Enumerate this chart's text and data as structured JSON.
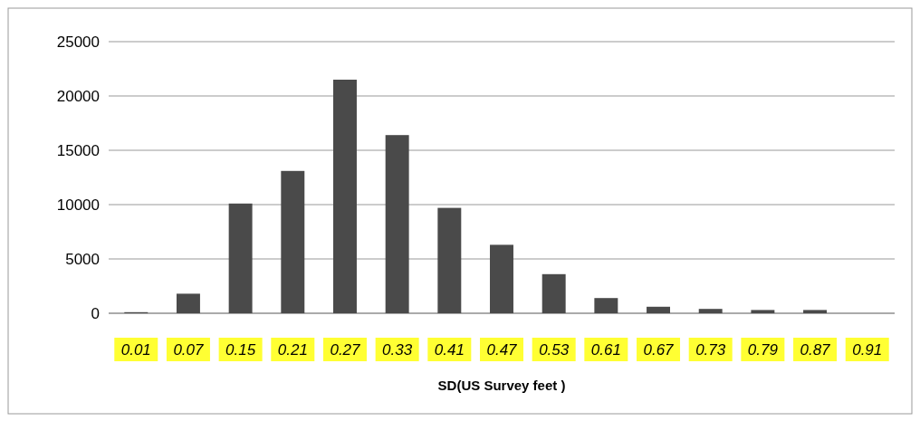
{
  "chart_data": {
    "type": "bar",
    "xlabel": "SD(US Survey feet )",
    "categories": [
      "0.01",
      "0.07",
      "0.15",
      "0.21",
      "0.27",
      "0.33",
      "0.41",
      "0.47",
      "0.53",
      "0.61",
      "0.67",
      "0.73",
      "0.79",
      "0.87",
      "0.91"
    ],
    "values": [
      100,
      1800,
      10100,
      13100,
      21500,
      16400,
      9700,
      6300,
      3600,
      1400,
      600,
      400,
      300,
      300,
      0
    ],
    "color": "#4a4a4a",
    "ylim": [
      0,
      25000
    ],
    "yticks": [
      0,
      5000,
      10000,
      15000,
      20000,
      25000
    ],
    "grid": "y"
  }
}
